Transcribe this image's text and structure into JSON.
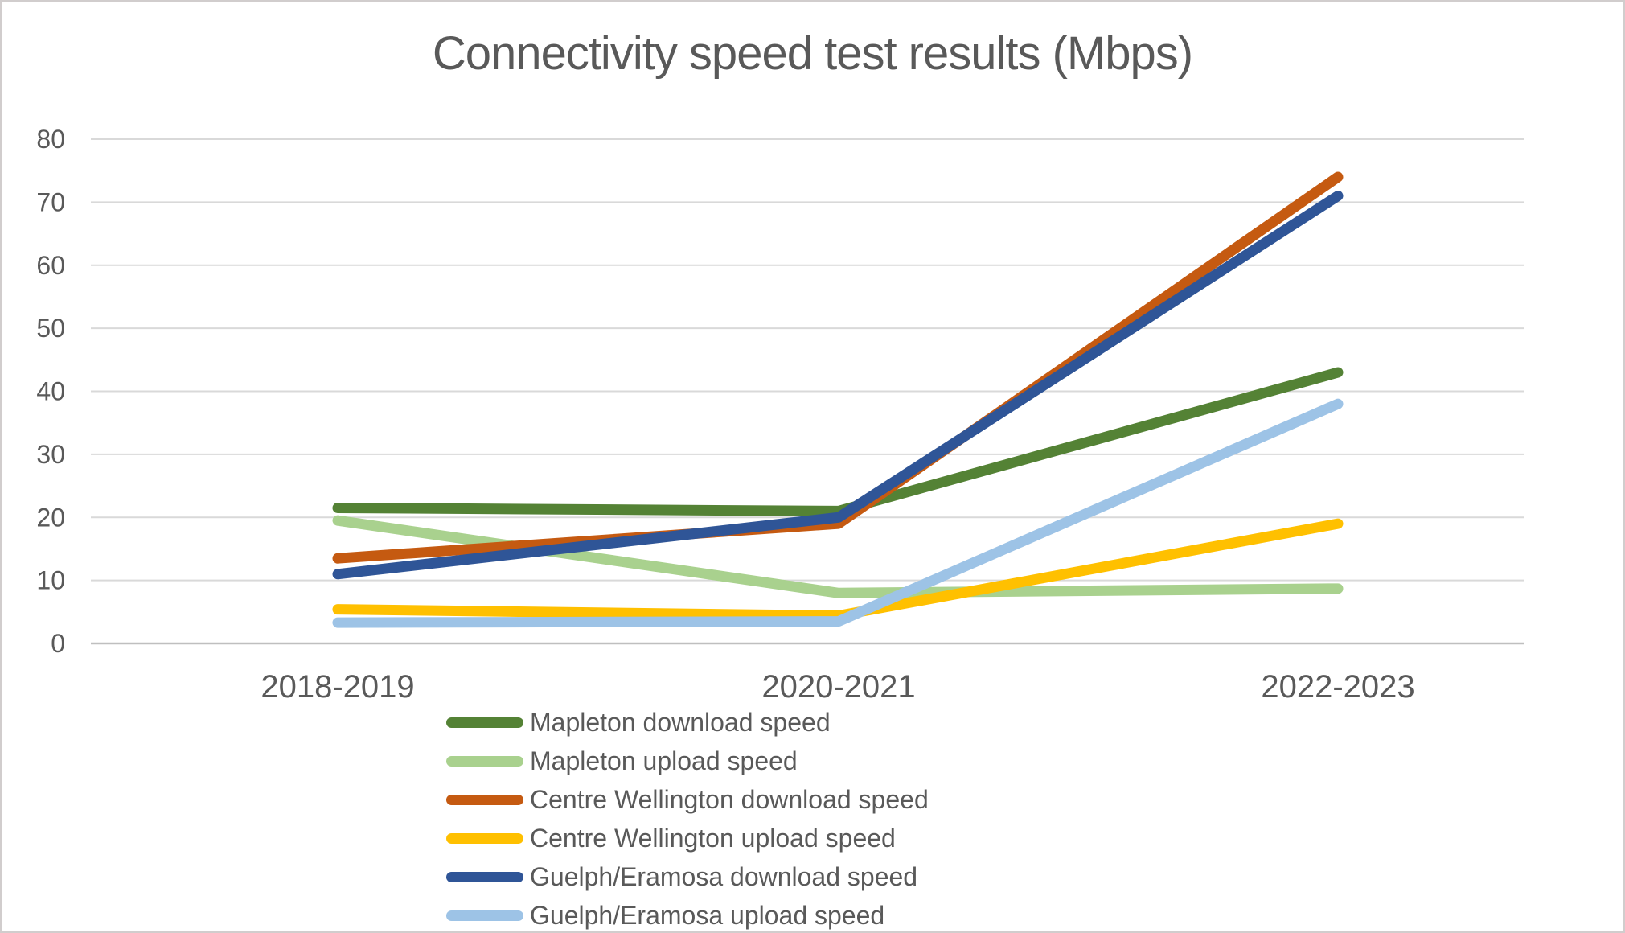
{
  "chart_data": {
    "type": "line",
    "title": "Connectivity speed test results (Mbps)",
    "categories": [
      "2018-2019",
      "2020-2021",
      "2022-2023"
    ],
    "series": [
      {
        "name": "Mapleton download speed",
        "color": "#548235",
        "values": [
          21.5,
          21,
          43
        ]
      },
      {
        "name": "Mapleton upload speed",
        "color": "#a9d18e",
        "values": [
          19.5,
          8,
          8.7
        ]
      },
      {
        "name": "Centre Wellington download speed",
        "color": "#c55a11",
        "values": [
          13.5,
          19,
          74
        ]
      },
      {
        "name": "Centre Wellington upload speed",
        "color": "#ffc000",
        "values": [
          5.4,
          4.4,
          19
        ]
      },
      {
        "name": "Guelph/Eramosa download speed",
        "color": "#2f5597",
        "values": [
          11,
          20,
          71
        ]
      },
      {
        "name": "Guelph/Eramosa upload speed",
        "color": "#9dc3e6",
        "values": [
          3.3,
          3.5,
          38
        ]
      }
    ],
    "xlabel": "",
    "ylabel": "",
    "ylim": [
      0,
      80
    ],
    "ytick_step": 10,
    "yticks": [
      "0",
      "10",
      "20",
      "30",
      "40",
      "50",
      "60",
      "70",
      "80"
    ],
    "grid": true,
    "legend_position": "bottom-left",
    "text_color": "#595959",
    "grid_color": "#d9d9d9",
    "axis_color": "#bfbfbf",
    "background_color": "#ffffff",
    "border_color": "#d1cdcd"
  }
}
